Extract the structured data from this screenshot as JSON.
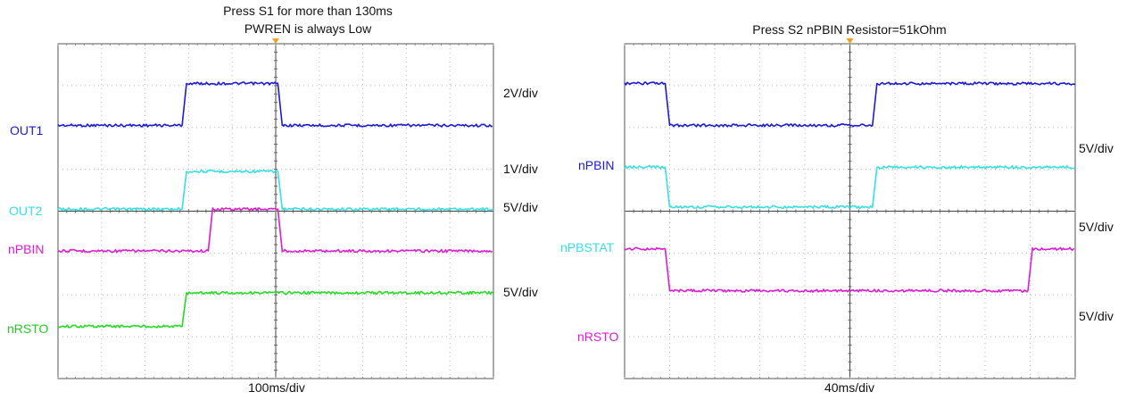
{
  "chart_data": [
    {
      "type": "line",
      "title_lines": [
        "Press S1 for more than 130ms",
        "PWREN is always Low"
      ],
      "xlabel": "100ms/div",
      "grid": true,
      "divisions": {
        "x": 10,
        "y": 8
      },
      "scale_labels": [
        "2V/div",
        "1V/div",
        "5V/div",
        "5V/div"
      ],
      "series": [
        {
          "name": "OUT1",
          "color": "#1a1adb",
          "x": [
            0,
            2.85,
            2.95,
            5.05,
            5.15,
            10
          ],
          "y": [
            1.95,
            1.95,
            0.95,
            0.95,
            1.95,
            1.95
          ]
        },
        {
          "name": "OUT2",
          "color": "#33e0e6",
          "x": [
            0,
            2.85,
            2.95,
            5.05,
            5.15,
            10
          ],
          "y": [
            3.95,
            3.95,
            3.05,
            3.05,
            3.95,
            3.95
          ]
        },
        {
          "name": "nPBIN",
          "color": "#e01ad4",
          "x": [
            0,
            3.45,
            3.55,
            5.05,
            5.15,
            10
          ],
          "y": [
            4.95,
            4.95,
            3.95,
            3.95,
            4.95,
            4.95
          ]
        },
        {
          "name": "nRSTO",
          "color": "#22dd22",
          "x": [
            0,
            2.85,
            2.95,
            10
          ],
          "y": [
            6.75,
            6.75,
            5.95,
            5.95
          ]
        }
      ]
    },
    {
      "type": "line",
      "title_lines": [
        "Press S2 nPBIN Resistor=51kOhm"
      ],
      "xlabel": "40ms/div",
      "grid": true,
      "divisions": {
        "x": 10,
        "y": 8
      },
      "scale_labels": [
        "5V/div",
        "5V/div",
        "5V/div"
      ],
      "series": [
        {
          "name": "nPBIN",
          "color": "#1a1adb",
          "x": [
            0,
            0.9,
            1.0,
            5.5,
            5.6,
            10
          ],
          "y": [
            0.95,
            0.95,
            1.95,
            1.95,
            0.95,
            0.95
          ]
        },
        {
          "name": "nPBSTAT",
          "color": "#33e0e6",
          "x": [
            0,
            0.9,
            1.0,
            5.5,
            5.6,
            10
          ],
          "y": [
            2.95,
            2.95,
            3.9,
            3.9,
            2.95,
            2.95
          ]
        },
        {
          "name": "nRSTO",
          "color": "#e01ad4",
          "x": [
            0,
            0.9,
            1.0,
            8.95,
            9.05,
            10
          ],
          "y": [
            4.9,
            4.9,
            5.9,
            5.9,
            4.9,
            4.9
          ]
        }
      ]
    }
  ]
}
